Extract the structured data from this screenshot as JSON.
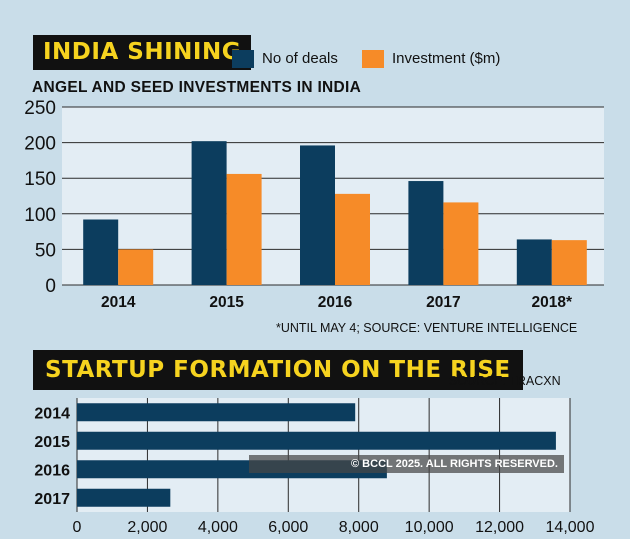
{
  "header": {
    "title1": "INDIA SHINING",
    "subtitle1": "ANGEL AND SEED INVESTMENTS IN INDIA",
    "note1": "*UNTIL MAY 4;  SOURCE: VENTURE INTELLIGENCE",
    "title2": "STARTUP FORMATION ON THE RISE",
    "source2": "SOURCE: TRACXN",
    "watermark": "© BCCL 2025. ALL RIGHTS RESERVED."
  },
  "legend": [
    {
      "label": "No of deals",
      "color": "#0c3d5e"
    },
    {
      "label": "Investment ($m)",
      "color": "#f68b28"
    }
  ],
  "chart_data": [
    {
      "type": "bar",
      "title": "ANGEL AND SEED INVESTMENTS IN INDIA",
      "categories": [
        "2014",
        "2015",
        "2016",
        "2017",
        "2018*"
      ],
      "series": [
        {
          "name": "No of deals",
          "values": [
            92,
            202,
            196,
            146,
            64
          ],
          "color": "#0c3d5e"
        },
        {
          "name": "Investment ($m)",
          "values": [
            50,
            156,
            128,
            116,
            63
          ],
          "color": "#f68b28"
        }
      ],
      "ylim": [
        0,
        250
      ],
      "yticks": [
        "0",
        "50",
        "100",
        "150",
        "200",
        "250"
      ],
      "grid": true,
      "legend": "top"
    },
    {
      "type": "bar",
      "orientation": "horizontal",
      "title": "STARTUP FORMATION ON THE RISE",
      "categories": [
        "2014",
        "2015",
        "2016",
        "2017"
      ],
      "values": [
        7900,
        13600,
        8800,
        2650
      ],
      "color": "#0c3d5e",
      "xlim": [
        0,
        14000
      ],
      "xticks": [
        "0",
        "2,000",
        "4,000",
        "6,000",
        "8,000",
        "10,000",
        "12,000",
        "14,000"
      ],
      "grid": true
    }
  ]
}
